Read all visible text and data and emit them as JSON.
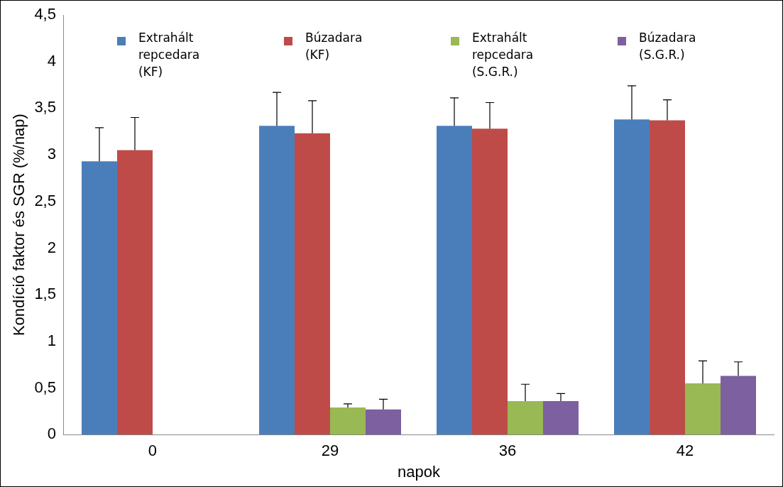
{
  "chart_data": {
    "type": "bar",
    "ylabel": "Kondíció faktor és SGR (%/nap)",
    "xlabel": "napok",
    "categories": [
      "0",
      "29",
      "36",
      "42"
    ],
    "series": [
      {
        "name": "Extrahált repcedara (KF)",
        "color": "#4a7ebb",
        "values": [
          2.93,
          3.31,
          3.31,
          3.38
        ],
        "errors": [
          [
            2.93,
            3.29
          ],
          [
            3.31,
            3.67
          ],
          [
            3.31,
            3.61
          ],
          [
            3.38,
            3.74
          ]
        ]
      },
      {
        "name": "Búzadara (KF)",
        "color": "#be4b48",
        "values": [
          3.05,
          3.23,
          3.28,
          3.37
        ],
        "errors": [
          [
            3.05,
            3.4
          ],
          [
            3.23,
            3.58
          ],
          [
            3.28,
            3.56
          ],
          [
            3.37,
            3.59
          ]
        ]
      },
      {
        "name": "Extrahált repcedara (S.G.R.)",
        "color": "#98b954",
        "values": [
          null,
          0.29,
          0.36,
          0.55
        ],
        "errors": [
          null,
          [
            0.29,
            0.33
          ],
          [
            0.36,
            0.54
          ],
          [
            0.55,
            0.79
          ]
        ]
      },
      {
        "name": "Búzadara (S.G.R.)",
        "color": "#7d60a0",
        "values": [
          null,
          0.27,
          0.36,
          0.63
        ],
        "errors": [
          null,
          [
            0.27,
            0.38
          ],
          [
            0.36,
            0.44
          ],
          [
            0.63,
            0.78
          ]
        ]
      }
    ],
    "ylim": [
      0,
      4.5
    ],
    "yticks": [
      0,
      {
        "value": 0.5,
        "label": "0,5"
      },
      1,
      {
        "value": 1.5,
        "label": "1,5"
      },
      2,
      {
        "value": 2.5,
        "label": "2,5"
      },
      3,
      {
        "value": 3.5,
        "label": "3,5"
      },
      4,
      {
        "value": 4.5,
        "label": "4,5"
      }
    ],
    "grid": false,
    "legend": "top"
  }
}
